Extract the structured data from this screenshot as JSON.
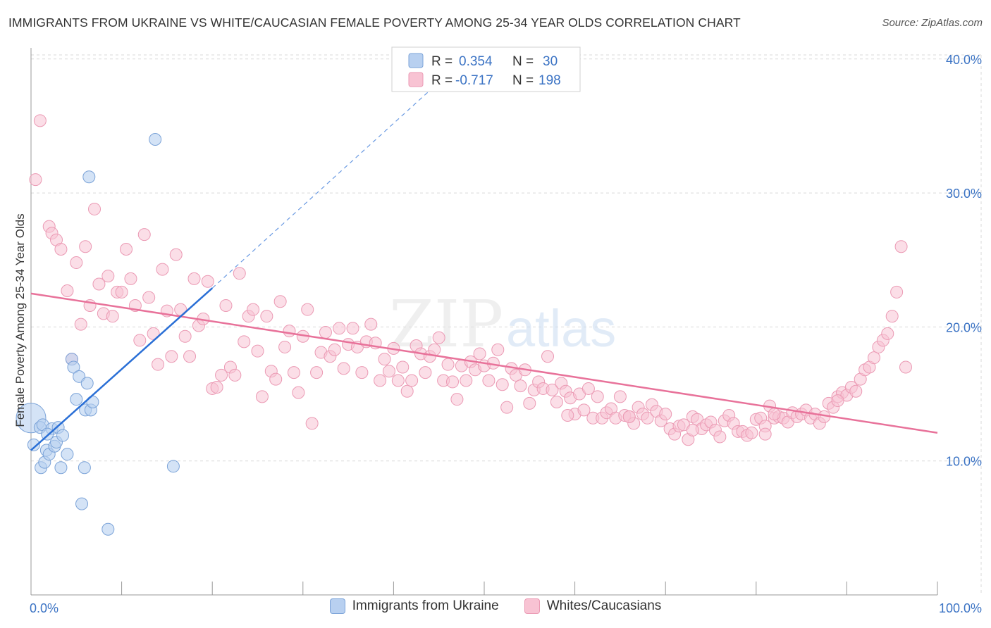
{
  "title": "IMMIGRANTS FROM UKRAINE VS WHITE/CAUCASIAN FEMALE POVERTY AMONG 25-34 YEAR OLDS CORRELATION CHART",
  "source": "Source: ZipAtlas.com",
  "watermark": {
    "part1": "ZIP",
    "part2": "atlas"
  },
  "colors": {
    "blue_fill": "#b8d0f0",
    "blue_stroke": "#7ba3d8",
    "blue_line": "#2a6fd6",
    "pink_fill": "#f8c3d3",
    "pink_stroke": "#eb9ab4",
    "pink_line": "#e8729a",
    "axis_text": "#3b73c4",
    "grid": "#d9d9d9"
  },
  "legend_top": [
    {
      "r_label": "R = ",
      "r_value": "0.354",
      "n_label": "N = ",
      "n_value": "30"
    },
    {
      "r_label": "R = ",
      "r_value": "-0.717",
      "n_label": "N = ",
      "n_value": "198"
    }
  ],
  "legend_bottom": [
    "Immigrants from Ukraine",
    "Whites/Caucasians"
  ],
  "chart_data": {
    "type": "scatter",
    "xlabel": "",
    "ylabel": "Female Poverty Among 25-34 Year Olds",
    "xlim": [
      0,
      100
    ],
    "ylim": [
      0,
      42
    ],
    "x_ticks": [
      0,
      10,
      20,
      30,
      40,
      50,
      60,
      70,
      80,
      90,
      100
    ],
    "x_tick_labels_shown": {
      "0": "0.0%",
      "100": "100.0%"
    },
    "y_ticks": [
      10,
      20,
      30,
      40
    ],
    "y_tick_labels": [
      "10.0%",
      "20.0%",
      "30.0%",
      "40.0%"
    ],
    "grid": true,
    "series": [
      {
        "name": "Immigrants from Ukraine",
        "color": "blue",
        "trend": {
          "x": [
            0,
            20
          ],
          "y": [
            10.8,
            22.9
          ]
        },
        "trend_extension": {
          "x": [
            20,
            47
          ],
          "y": [
            22.9,
            39.5
          ]
        },
        "points": [
          [
            0,
            13.2
          ],
          [
            0.3,
            11.2
          ],
          [
            1,
            12.5
          ],
          [
            1.1,
            9.5
          ],
          [
            1.3,
            12.7
          ],
          [
            1.5,
            9.9
          ],
          [
            1.7,
            10.8
          ],
          [
            2,
            10.5
          ],
          [
            2.3,
            12.4
          ],
          [
            2.6,
            11.1
          ],
          [
            2.8,
            11.4
          ],
          [
            3,
            12.5
          ],
          [
            3.3,
            9.5
          ],
          [
            3.5,
            11.9
          ],
          [
            4,
            10.5
          ],
          [
            4.5,
            17.6
          ],
          [
            4.7,
            17.0
          ],
          [
            5,
            14.6
          ],
          [
            5.3,
            16.3
          ],
          [
            5.6,
            6.8
          ],
          [
            5.9,
            9.5
          ],
          [
            6,
            13.8
          ],
          [
            6.2,
            15.8
          ],
          [
            6.4,
            31.2
          ],
          [
            6.6,
            13.8
          ],
          [
            6.8,
            14.4
          ],
          [
            8.5,
            4.9
          ],
          [
            13.7,
            34.0
          ],
          [
            15.7,
            9.6
          ],
          [
            1.8,
            12.0
          ]
        ]
      },
      {
        "name": "Whites/Caucasians",
        "color": "pink",
        "trend": {
          "x": [
            0,
            100
          ],
          "y": [
            22.5,
            12.1
          ]
        },
        "points": [
          [
            0.5,
            31.0
          ],
          [
            1,
            35.4
          ],
          [
            2,
            27.5
          ],
          [
            2.3,
            27.0
          ],
          [
            2.8,
            26.5
          ],
          [
            3.3,
            25.8
          ],
          [
            4,
            22.7
          ],
          [
            4.5,
            17.6
          ],
          [
            5,
            24.8
          ],
          [
            5.5,
            20.2
          ],
          [
            6,
            26.0
          ],
          [
            6.5,
            21.6
          ],
          [
            7,
            28.8
          ],
          [
            7.5,
            23.2
          ],
          [
            8,
            21.0
          ],
          [
            8.5,
            23.8
          ],
          [
            9,
            20.8
          ],
          [
            9.5,
            22.6
          ],
          [
            10,
            22.6
          ],
          [
            10.5,
            25.8
          ],
          [
            11,
            23.6
          ],
          [
            11.5,
            21.6
          ],
          [
            12,
            19.0
          ],
          [
            12.5,
            26.9
          ],
          [
            13,
            22.2
          ],
          [
            13.5,
            19.5
          ],
          [
            14,
            17.2
          ],
          [
            14.5,
            24.3
          ],
          [
            15,
            21.2
          ],
          [
            15.5,
            17.8
          ],
          [
            16,
            25.4
          ],
          [
            16.5,
            21.3
          ],
          [
            17,
            19.3
          ],
          [
            17.5,
            17.8
          ],
          [
            18,
            23.6
          ],
          [
            18.5,
            20.1
          ],
          [
            19,
            20.6
          ],
          [
            19.5,
            23.4
          ],
          [
            20,
            15.4
          ],
          [
            20.5,
            15.5
          ],
          [
            21,
            16.4
          ],
          [
            21.5,
            21.6
          ],
          [
            22,
            17.0
          ],
          [
            22.5,
            16.4
          ],
          [
            23,
            24.0
          ],
          [
            23.5,
            18.9
          ],
          [
            24,
            20.8
          ],
          [
            24.5,
            21.3
          ],
          [
            25,
            18.2
          ],
          [
            25.5,
            14.8
          ],
          [
            26,
            20.8
          ],
          [
            26.5,
            16.7
          ],
          [
            27,
            16.1
          ],
          [
            27.5,
            21.9
          ],
          [
            28,
            18.5
          ],
          [
            28.5,
            19.7
          ],
          [
            29,
            16.6
          ],
          [
            29.5,
            15.1
          ],
          [
            30,
            19.3
          ],
          [
            30.5,
            21.3
          ],
          [
            31,
            12.8
          ],
          [
            31.5,
            16.6
          ],
          [
            32,
            18.1
          ],
          [
            32.5,
            19.6
          ],
          [
            33,
            17.8
          ],
          [
            33.5,
            18.3
          ],
          [
            34,
            19.9
          ],
          [
            34.5,
            16.9
          ],
          [
            35,
            18.7
          ],
          [
            35.5,
            19.9
          ],
          [
            36,
            18.5
          ],
          [
            36.5,
            16.6
          ],
          [
            37,
            18.9
          ],
          [
            37.5,
            20.2
          ],
          [
            38,
            18.8
          ],
          [
            38.5,
            16.0
          ],
          [
            39,
            17.6
          ],
          [
            39.5,
            16.7
          ],
          [
            40,
            18.4
          ],
          [
            40.5,
            16.0
          ],
          [
            41,
            17.0
          ],
          [
            41.5,
            15.2
          ],
          [
            42,
            16.0
          ],
          [
            42.5,
            18.6
          ],
          [
            43,
            18.0
          ],
          [
            43.5,
            16.6
          ],
          [
            44,
            17.8
          ],
          [
            44.5,
            18.3
          ],
          [
            45,
            19.2
          ],
          [
            45.5,
            16.0
          ],
          [
            46,
            17.2
          ],
          [
            46.5,
            15.9
          ],
          [
            47,
            14.6
          ],
          [
            47.5,
            17.1
          ],
          [
            48,
            16.0
          ],
          [
            48.5,
            17.4
          ],
          [
            49,
            16.8
          ],
          [
            49.5,
            18.0
          ],
          [
            50,
            17.1
          ],
          [
            50.5,
            16.0
          ],
          [
            51,
            17.3
          ],
          [
            51.5,
            18.3
          ],
          [
            52,
            15.7
          ],
          [
            52.5,
            14.0
          ],
          [
            53,
            16.9
          ],
          [
            53.5,
            16.4
          ],
          [
            54,
            15.6
          ],
          [
            54.5,
            16.8
          ],
          [
            55,
            14.3
          ],
          [
            55.5,
            15.3
          ],
          [
            56,
            15.9
          ],
          [
            56.5,
            15.4
          ],
          [
            57,
            17.8
          ],
          [
            57.5,
            15.3
          ],
          [
            58,
            14.4
          ],
          [
            58.5,
            15.8
          ],
          [
            59,
            15.2
          ],
          [
            59.5,
            14.7
          ],
          [
            60,
            13.5
          ],
          [
            60.5,
            15.0
          ],
          [
            61,
            13.8
          ],
          [
            61.5,
            15.4
          ],
          [
            62,
            13.2
          ],
          [
            62.5,
            14.8
          ],
          [
            63,
            13.2
          ],
          [
            63.5,
            13.6
          ],
          [
            64,
            13.9
          ],
          [
            64.5,
            13.2
          ],
          [
            65,
            14.8
          ],
          [
            65.5,
            13.4
          ],
          [
            66,
            13.3
          ],
          [
            66.5,
            12.8
          ],
          [
            67,
            14.0
          ],
          [
            67.5,
            13.5
          ],
          [
            68,
            13.2
          ],
          [
            68.5,
            14.2
          ],
          [
            69,
            13.7
          ],
          [
            69.5,
            13.0
          ],
          [
            70,
            13.5
          ],
          [
            70.5,
            12.4
          ],
          [
            71,
            12.0
          ],
          [
            71.5,
            12.6
          ],
          [
            72,
            12.7
          ],
          [
            72.5,
            11.6
          ],
          [
            73,
            13.3
          ],
          [
            73.5,
            13.1
          ],
          [
            74,
            12.4
          ],
          [
            74.5,
            12.7
          ],
          [
            75,
            12.9
          ],
          [
            75.5,
            12.3
          ],
          [
            76,
            11.8
          ],
          [
            76.5,
            13.0
          ],
          [
            77,
            13.4
          ],
          [
            77.5,
            12.8
          ],
          [
            78,
            12.2
          ],
          [
            78.5,
            12.2
          ],
          [
            79,
            11.9
          ],
          [
            79.5,
            12.1
          ],
          [
            80,
            13.1
          ],
          [
            80.5,
            13.2
          ],
          [
            81,
            12.6
          ],
          [
            81.5,
            14.1
          ],
          [
            82,
            13.2
          ],
          [
            82.5,
            13.3
          ],
          [
            83,
            13.2
          ],
          [
            83.5,
            12.9
          ],
          [
            84,
            13.6
          ],
          [
            84.5,
            13.3
          ],
          [
            85,
            13.5
          ],
          [
            85.5,
            13.8
          ],
          [
            86,
            13.2
          ],
          [
            86.5,
            13.5
          ],
          [
            87,
            12.8
          ],
          [
            87.5,
            13.3
          ],
          [
            88,
            14.3
          ],
          [
            88.5,
            14.0
          ],
          [
            89,
            14.8
          ],
          [
            89.5,
            15.1
          ],
          [
            90,
            14.9
          ],
          [
            90.5,
            15.5
          ],
          [
            91,
            15.2
          ],
          [
            91.5,
            16.1
          ],
          [
            92,
            16.8
          ],
          [
            92.5,
            17.0
          ],
          [
            93,
            17.7
          ],
          [
            93.5,
            18.5
          ],
          [
            94,
            19.0
          ],
          [
            94.5,
            19.5
          ],
          [
            95,
            20.8
          ],
          [
            95.5,
            22.6
          ],
          [
            96,
            26.0
          ],
          [
            96.5,
            17.0
          ],
          [
            59.2,
            13.4
          ],
          [
            66.0,
            13.3
          ],
          [
            73.0,
            12.3
          ],
          [
            81.0,
            12.0
          ],
          [
            82.0,
            13.5
          ],
          [
            89.0,
            14.5
          ]
        ]
      }
    ]
  }
}
